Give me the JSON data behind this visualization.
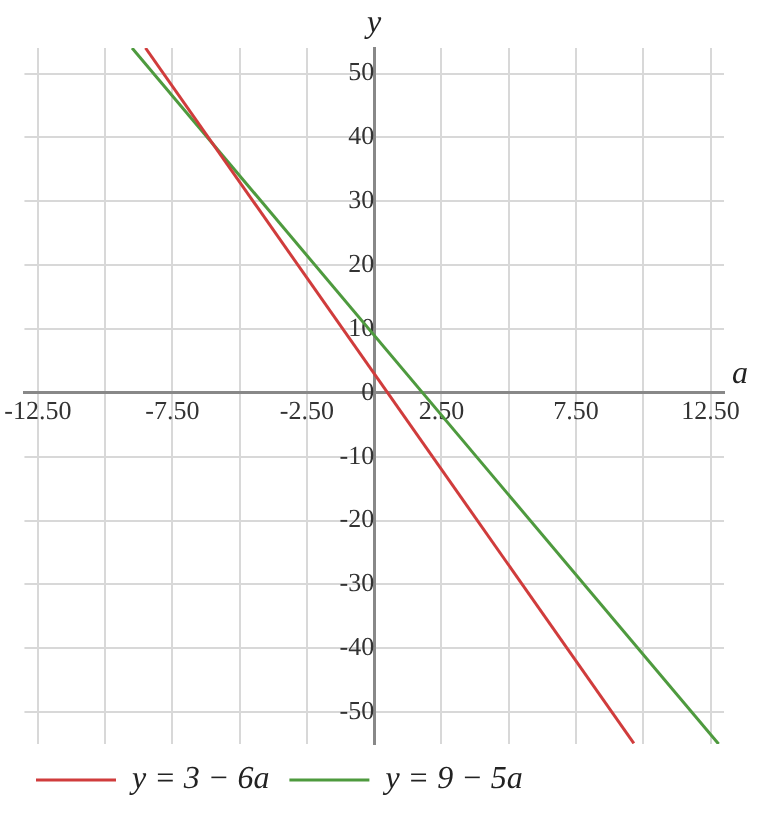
{
  "chart_data": {
    "type": "line",
    "xlabel": "a",
    "ylabel": "y",
    "xlim": [
      -13,
      13
    ],
    "ylim": [
      -55,
      54
    ],
    "xticks": [
      {
        "value": -12.5,
        "label": "-12.50"
      },
      {
        "value": -10,
        "label": null
      },
      {
        "value": -7.5,
        "label": "-7.50"
      },
      {
        "value": -5,
        "label": null
      },
      {
        "value": -2.5,
        "label": "-2.50"
      },
      {
        "value": 0,
        "label": null
      },
      {
        "value": 2.5,
        "label": "2.50"
      },
      {
        "value": 5,
        "label": null
      },
      {
        "value": 7.5,
        "label": "7.50"
      },
      {
        "value": 10,
        "label": null
      },
      {
        "value": 12.5,
        "label": "12.50"
      }
    ],
    "yticks": [
      -50,
      -40,
      -30,
      -20,
      -10,
      0,
      10,
      20,
      30,
      40,
      50
    ],
    "series": [
      {
        "name": "y = 3 − 6a",
        "color": "#d03c3c",
        "x": [
          -8.5,
          9.65
        ],
        "values": [
          54,
          -54.9
        ]
      },
      {
        "name": "y = 9 − 5a",
        "color": "#4e9a3e",
        "x": [
          -9,
          12.8
        ],
        "values": [
          54,
          -55
        ]
      }
    ],
    "grid": true,
    "legend": "bottom left",
    "marker": "none",
    "line_style": "solid"
  }
}
